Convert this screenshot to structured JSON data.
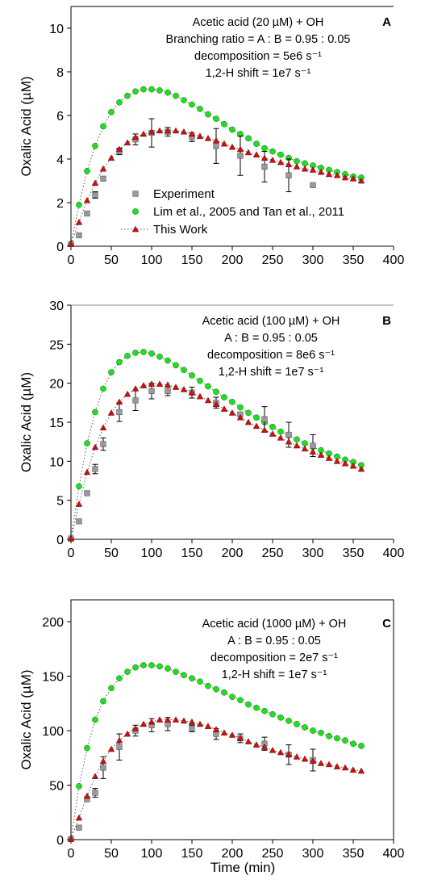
{
  "chart_data": [
    {
      "type": "scatter",
      "panel": "A",
      "xlabel": "",
      "ylabel": "Oxalic Acid (µM)",
      "xlim": [
        0,
        400
      ],
      "ylim": [
        0,
        11
      ],
      "xticks": [
        "0",
        "50",
        "100",
        "150",
        "200",
        "250",
        "300",
        "350",
        "400"
      ],
      "yticks": [
        "0",
        "2",
        "4",
        "6",
        "8",
        "10"
      ],
      "annotation": [
        "Acetic acid (20 µM) + OH",
        "Branching ratio = A : B = 0.95 : 0.05",
        "decomposition = 5e6 s⁻¹",
        "1,2-H shift = 1e7 s⁻¹"
      ],
      "legend": {
        "position": "lower-center",
        "entries": [
          "Experiment",
          "Lim et al., 2005 and Tan et al., 2011",
          "This Work"
        ]
      },
      "experiment": {
        "x": [
          0,
          10,
          20,
          30,
          40,
          60,
          80,
          100,
          120,
          150,
          180,
          210,
          240,
          270,
          300
        ],
        "y": [
          0.1,
          0.5,
          1.5,
          2.35,
          3.1,
          4.35,
          4.9,
          5.2,
          5.25,
          5.0,
          4.6,
          4.15,
          3.65,
          3.25,
          2.8
        ],
        "err": [
          0,
          0,
          0,
          0.15,
          0.1,
          0.15,
          0.25,
          0.65,
          0.2,
          0.2,
          0.8,
          0.9,
          0.7,
          0.75,
          0
        ]
      },
      "lim_tan": {
        "x": [
          0,
          10,
          20,
          30,
          40,
          50,
          60,
          70,
          80,
          90,
          100,
          110,
          120,
          130,
          140,
          150,
          160,
          170,
          180,
          190,
          200,
          210,
          220,
          230,
          240,
          250,
          260,
          270,
          280,
          290,
          300,
          310,
          320,
          330,
          340,
          350,
          360
        ],
        "y": [
          0.1,
          1.9,
          3.45,
          4.6,
          5.5,
          6.15,
          6.6,
          6.9,
          7.1,
          7.2,
          7.2,
          7.15,
          7.05,
          6.9,
          6.7,
          6.5,
          6.3,
          6.05,
          5.85,
          5.6,
          5.35,
          5.15,
          4.95,
          4.7,
          4.5,
          4.35,
          4.2,
          4.05,
          3.9,
          3.8,
          3.7,
          3.6,
          3.5,
          3.4,
          3.3,
          3.2,
          3.15
        ]
      },
      "this_work": {
        "x": [
          0,
          10,
          20,
          30,
          40,
          50,
          60,
          70,
          80,
          90,
          100,
          110,
          120,
          130,
          140,
          150,
          160,
          170,
          180,
          190,
          200,
          210,
          220,
          230,
          240,
          250,
          260,
          270,
          280,
          290,
          300,
          310,
          320,
          330,
          340,
          350,
          360
        ],
        "y": [
          0.1,
          1.1,
          2.1,
          2.9,
          3.55,
          4.05,
          4.45,
          4.75,
          5.0,
          5.15,
          5.25,
          5.3,
          5.3,
          5.3,
          5.25,
          5.15,
          5.05,
          4.95,
          4.85,
          4.7,
          4.55,
          4.45,
          4.3,
          4.2,
          4.05,
          3.95,
          3.85,
          3.75,
          3.65,
          3.55,
          3.5,
          3.4,
          3.3,
          3.25,
          3.15,
          3.1,
          3.0
        ]
      }
    },
    {
      "type": "scatter",
      "panel": "B",
      "xlabel": "",
      "ylabel": "Oxalic Acid (µM)",
      "xlim": [
        0,
        400
      ],
      "ylim": [
        0,
        30
      ],
      "xticks": [
        "0",
        "50",
        "100",
        "150",
        "200",
        "250",
        "300",
        "350",
        "400"
      ],
      "yticks": [
        "0",
        "5",
        "10",
        "15",
        "20",
        "25",
        "30"
      ],
      "annotation": [
        "Acetic acid (100 µM) + OH",
        "A : B = 0.95 : 0.05",
        "decomposition = 8e6 s⁻¹",
        "1,2-H shift = 1e7 s⁻¹"
      ],
      "experiment": {
        "x": [
          0,
          10,
          20,
          30,
          40,
          60,
          80,
          100,
          120,
          150,
          180,
          210,
          240,
          270,
          300
        ],
        "y": [
          0.1,
          2.3,
          5.9,
          9.0,
          12.2,
          16.3,
          17.8,
          19.0,
          19.0,
          18.8,
          17.5,
          16.0,
          15.4,
          13.4,
          12.0
        ],
        "err": [
          0,
          0,
          0,
          0.6,
          0.8,
          1.2,
          1.3,
          1.0,
          0.6,
          0.7,
          0.7,
          0.3,
          1.6,
          1.6,
          1.4
        ]
      },
      "lim_tan": {
        "x": [
          0,
          10,
          20,
          30,
          40,
          50,
          60,
          70,
          80,
          90,
          100,
          110,
          120,
          130,
          140,
          150,
          160,
          170,
          180,
          190,
          200,
          210,
          220,
          230,
          240,
          250,
          260,
          270,
          280,
          290,
          300,
          310,
          320,
          330,
          340,
          350,
          360
        ],
        "y": [
          0.1,
          6.8,
          12.3,
          16.3,
          19.3,
          21.4,
          22.7,
          23.5,
          23.9,
          24.0,
          23.8,
          23.4,
          22.9,
          22.3,
          21.7,
          21.0,
          20.3,
          19.6,
          18.9,
          18.2,
          17.6,
          16.9,
          16.2,
          15.6,
          15.0,
          14.4,
          13.8,
          13.3,
          12.8,
          12.3,
          11.8,
          11.4,
          11.0,
          10.6,
          10.2,
          9.9,
          9.5
        ]
      },
      "this_work": {
        "x": [
          0,
          10,
          20,
          30,
          40,
          50,
          60,
          70,
          80,
          90,
          100,
          110,
          120,
          130,
          140,
          150,
          160,
          170,
          180,
          190,
          200,
          210,
          220,
          230,
          240,
          250,
          260,
          270,
          280,
          290,
          300,
          310,
          320,
          330,
          340,
          350,
          360
        ],
        "y": [
          0.1,
          4.5,
          8.6,
          11.8,
          14.3,
          16.2,
          17.6,
          18.6,
          19.3,
          19.7,
          19.9,
          19.9,
          19.8,
          19.5,
          19.2,
          18.8,
          18.3,
          17.8,
          17.3,
          16.7,
          16.2,
          15.6,
          15.0,
          14.5,
          14.0,
          13.5,
          13.0,
          12.5,
          12.0,
          11.6,
          11.2,
          10.8,
          10.4,
          10.0,
          9.7,
          9.4,
          9.0
        ]
      }
    },
    {
      "type": "scatter",
      "panel": "C",
      "xlabel": "Time (min)",
      "ylabel": "Oxalic Acid (µM)",
      "xlim": [
        0,
        400
      ],
      "ylim": [
        0,
        220
      ],
      "xticks": [
        "0",
        "50",
        "100",
        "150",
        "200",
        "250",
        "300",
        "350",
        "400"
      ],
      "yticks": [
        "0",
        "50",
        "100",
        "150",
        "200"
      ],
      "annotation": [
        "Acetic acid (1000 µM) + OH",
        "A : B = 0.95 : 0.05",
        "decomposition = 2e7 s⁻¹",
        "1,2-H shift = 1e7 s⁻¹"
      ],
      "experiment": {
        "x": [
          0,
          10,
          20,
          30,
          40,
          60,
          80,
          100,
          120,
          150,
          180,
          210,
          240,
          270,
          300
        ],
        "y": [
          0.5,
          11,
          37,
          43,
          66,
          85,
          100,
          105,
          106,
          102,
          97,
          93,
          88,
          78,
          73
        ],
        "err": [
          0,
          0,
          0,
          4,
          10,
          12,
          5,
          6,
          6,
          3,
          5,
          4,
          6,
          9,
          10
        ]
      },
      "lim_tan": {
        "x": [
          0,
          10,
          20,
          30,
          40,
          50,
          60,
          70,
          80,
          90,
          100,
          110,
          120,
          130,
          140,
          150,
          160,
          170,
          180,
          190,
          200,
          210,
          220,
          230,
          240,
          250,
          260,
          270,
          280,
          290,
          300,
          310,
          320,
          330,
          340,
          350,
          360
        ],
        "y": [
          0.5,
          49,
          84,
          110,
          127,
          139,
          148,
          154,
          158,
          160,
          160,
          159,
          157,
          154,
          151,
          148,
          145,
          141,
          138,
          135,
          131,
          128,
          124,
          121,
          118,
          115,
          112,
          109,
          106,
          103,
          100,
          98,
          95,
          93,
          91,
          88,
          86
        ]
      },
      "this_work": {
        "x": [
          0,
          10,
          20,
          30,
          40,
          50,
          60,
          70,
          80,
          90,
          100,
          110,
          120,
          130,
          140,
          150,
          160,
          170,
          180,
          190,
          200,
          210,
          220,
          230,
          240,
          250,
          260,
          270,
          280,
          290,
          300,
          310,
          320,
          330,
          340,
          350,
          360
        ],
        "y": [
          0.5,
          20,
          40,
          58,
          72,
          83,
          91,
          97,
          102,
          106,
          108,
          110,
          110,
          110,
          109,
          108,
          106,
          104,
          101,
          98,
          96,
          93,
          90,
          87,
          85,
          82,
          80,
          78,
          76,
          74,
          72,
          70,
          69,
          67,
          66,
          64,
          63
        ]
      }
    }
  ],
  "colors": {
    "experiment_fill": "#9a9a9a",
    "lim_tan_fill": "#22dd22",
    "this_work_fill": "#cc1111",
    "axis": "#000000"
  }
}
